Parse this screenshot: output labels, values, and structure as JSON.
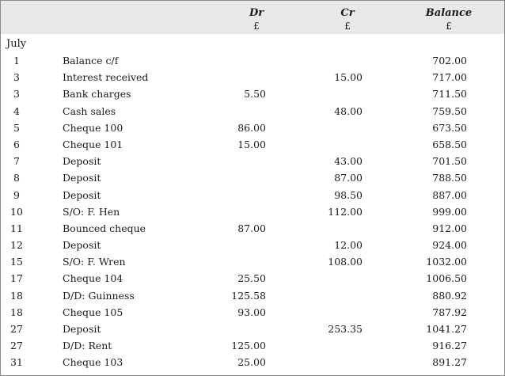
{
  "header": {
    "dr": "Dr",
    "cr": "Cr",
    "balance": "Balance",
    "dr_unit": "£",
    "cr_unit": "£",
    "balance_unit": "£"
  },
  "month": "July",
  "rows": [
    {
      "day": "1",
      "desc": "Balance c/f",
      "dr": "",
      "cr": "",
      "bal": "702.00"
    },
    {
      "day": "3",
      "desc": "Interest received",
      "dr": "",
      "cr": "15.00",
      "bal": "717.00"
    },
    {
      "day": "3",
      "desc": "Bank charges",
      "dr": "5.50",
      "cr": "",
      "bal": "711.50"
    },
    {
      "day": "4",
      "desc": "Cash sales",
      "dr": "",
      "cr": "48.00",
      "bal": "759.50"
    },
    {
      "day": "5",
      "desc": "Cheque 100",
      "dr": "86.00",
      "cr": "",
      "bal": "673.50"
    },
    {
      "day": "6",
      "desc": "Cheque 101",
      "dr": "15.00",
      "cr": "",
      "bal": "658.50"
    },
    {
      "day": "7",
      "desc": "Deposit",
      "dr": "",
      "cr": "43.00",
      "bal": "701.50"
    },
    {
      "day": "8",
      "desc": "Deposit",
      "dr": "",
      "cr": "87.00",
      "bal": "788.50"
    },
    {
      "day": "9",
      "desc": "Deposit",
      "dr": "",
      "cr": "98.50",
      "bal": "887.00"
    },
    {
      "day": "10",
      "desc": "S/O: F. Hen",
      "dr": "",
      "cr": "112.00",
      "bal": "999.00"
    },
    {
      "day": "11",
      "desc": "Bounced cheque",
      "dr": "87.00",
      "cr": "",
      "bal": "912.00"
    },
    {
      "day": "12",
      "desc": "Deposit",
      "dr": "",
      "cr": "12.00",
      "bal": "924.00"
    },
    {
      "day": "15",
      "desc": "S/O: F. Wren",
      "dr": "",
      "cr": "108.00",
      "bal": "1032.00"
    },
    {
      "day": "17",
      "desc": "Cheque 104",
      "dr": "25.50",
      "cr": "",
      "bal": "1006.50"
    },
    {
      "day": "18",
      "desc": "D/D: Guinness",
      "dr": "125.58",
      "cr": "",
      "bal": "880.92"
    },
    {
      "day": "18",
      "desc": "Cheque 105",
      "dr": "93.00",
      "cr": "",
      "bal": "787.92"
    },
    {
      "day": "27",
      "desc": "Deposit",
      "dr": "",
      "cr": "253.35",
      "bal": "1041.27"
    },
    {
      "day": "27",
      "desc": "D/D: Rent",
      "dr": "125.00",
      "cr": "",
      "bal": "916.27"
    },
    {
      "day": "31",
      "desc": "Cheque 103",
      "dr": "25.00",
      "cr": "",
      "bal": "891.27"
    }
  ]
}
